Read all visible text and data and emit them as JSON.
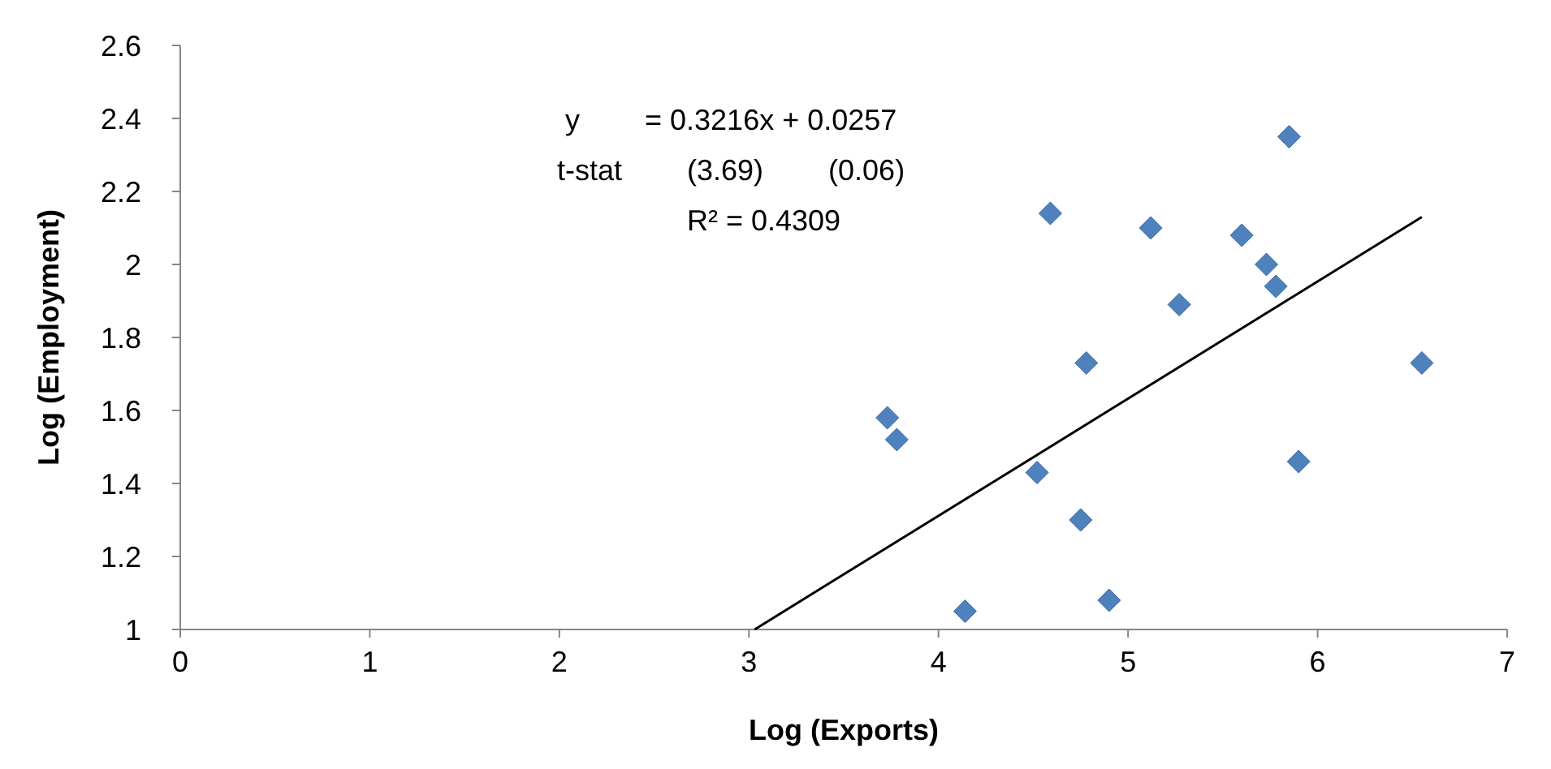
{
  "chart_data": {
    "type": "scatter",
    "xlabel": "Log (Exports)",
    "ylabel": "Log (Employment)",
    "xlim": [
      0,
      7
    ],
    "xticks": [
      0,
      1,
      2,
      3,
      4,
      5,
      6,
      7
    ],
    "ylim": [
      1,
      2.6
    ],
    "yticks": [
      {
        "value": 1,
        "label": "1"
      },
      {
        "value": 1.2,
        "label": "1.2"
      },
      {
        "value": 1.4,
        "label": "1.4"
      },
      {
        "value": 1.6,
        "label": "1.6"
      },
      {
        "value": 1.8,
        "label": "1.8"
      },
      {
        "value": 2,
        "label": "2"
      },
      {
        "value": 2.2,
        "label": "2.2"
      },
      {
        "value": 2.4,
        "label": "2.4"
      },
      {
        "value": 2.6,
        "label": "2.6"
      }
    ],
    "grid": false,
    "annotations": [
      "y        = 0.3216x + 0.0257",
      "t-stat        (3.69)        (0.06)",
      "R² = 0.4309"
    ],
    "series": [
      {
        "color": "#4f81bd",
        "marker": "diamond",
        "x": [
          3.73,
          3.78,
          4.14,
          4.52,
          4.59,
          4.75,
          4.78,
          4.9,
          5.12,
          5.27,
          5.6,
          5.73,
          5.78,
          5.85,
          5.9,
          6.55
        ],
        "values": [
          1.58,
          1.52,
          1.05,
          1.43,
          2.14,
          1.3,
          1.73,
          1.08,
          2.1,
          1.89,
          2.08,
          2,
          1.94,
          2.35,
          1.46,
          1.73
        ]
      },
      {
        "type": "line",
        "color": "#000000",
        "x": [
          3.03,
          6.55
        ],
        "values": [
          1.0,
          2.13
        ]
      }
    ]
  }
}
